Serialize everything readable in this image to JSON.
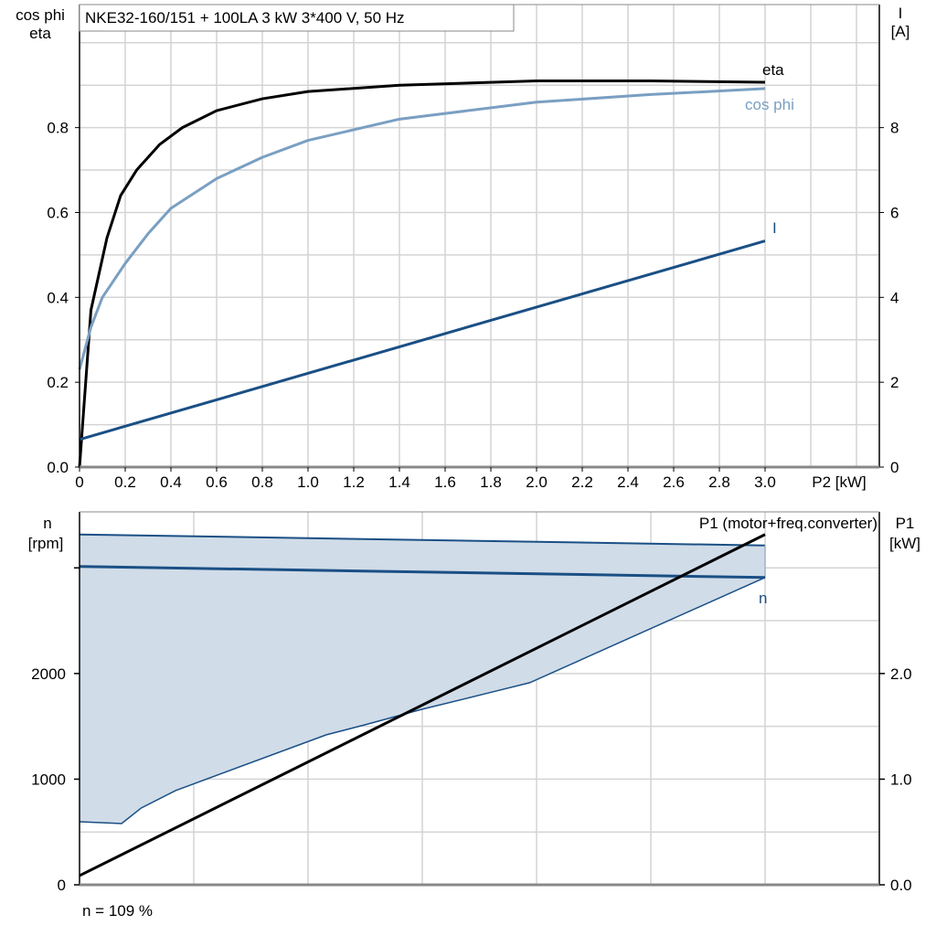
{
  "chart_data": [
    {
      "type": "line",
      "title": "NKE32-160/151 + 100LA   3 kW   3*400 V, 50 Hz",
      "xlabel": "P2 [kW]",
      "ylabel_left": [
        "cos phi",
        "eta"
      ],
      "ylabel_right": [
        "I",
        "[A]"
      ],
      "xlim": [
        0,
        3.5
      ],
      "ylim_left": [
        0,
        1.09
      ],
      "ylim_right": [
        0,
        10.9
      ],
      "x_ticks": [
        "0",
        "0.2",
        "0.4",
        "0.6",
        "0.8",
        "1.0",
        "1.2",
        "1.4",
        "1.6",
        "1.8",
        "2.0",
        "2.2",
        "2.4",
        "2.6",
        "2.8",
        "3.0"
      ],
      "y_ticks_left": [
        "0.0",
        "0.2",
        "0.4",
        "0.6",
        "0.8"
      ],
      "y_ticks_right": [
        "0",
        "2",
        "4",
        "6",
        "8"
      ],
      "grid": true,
      "series": [
        {
          "name": "eta",
          "axis": "left",
          "color": "#000000",
          "x": [
            0,
            0.05,
            0.12,
            0.18,
            0.25,
            0.35,
            0.45,
            0.6,
            0.8,
            1.0,
            1.4,
            2.0,
            2.5,
            3.0
          ],
          "y": [
            0,
            0.37,
            0.54,
            0.64,
            0.7,
            0.76,
            0.8,
            0.84,
            0.868,
            0.885,
            0.9,
            0.91,
            0.91,
            0.907
          ]
        },
        {
          "name": "cos phi",
          "axis": "left",
          "color": "#7a9fc2",
          "x": [
            0,
            0.05,
            0.1,
            0.2,
            0.3,
            0.4,
            0.6,
            0.8,
            1.0,
            1.4,
            2.0,
            2.5,
            3.0
          ],
          "y": [
            0.23,
            0.33,
            0.4,
            0.48,
            0.55,
            0.61,
            0.68,
            0.73,
            0.77,
            0.82,
            0.86,
            0.878,
            0.892
          ]
        },
        {
          "name": "I",
          "axis": "right",
          "color": "#1a4f85",
          "x": [
            0,
            3.0
          ],
          "y": [
            0.65,
            5.33
          ]
        }
      ]
    },
    {
      "type": "area",
      "xlim": [
        0,
        3.5
      ],
      "ylabel_left": [
        "n",
        "[rpm]"
      ],
      "ylabel_right": [
        "P1",
        "[kW]"
      ],
      "ylim_left": [
        0,
        3530
      ],
      "ylim_right": [
        0,
        3.53
      ],
      "y_ticks_left": [
        "0",
        "1000",
        "2000"
      ],
      "y_ticks_right": [
        "0.0",
        "1.0",
        "2.0"
      ],
      "grid": true,
      "footnote": "n = 109 %",
      "area_upper": {
        "x": [
          0,
          3.0
        ],
        "y": [
          3316,
          3212
        ]
      },
      "area_lower": {
        "x": [
          0,
          0.184,
          0.27,
          0.42,
          1.08,
          1.25,
          1.5,
          1.81,
          1.97,
          3.0
        ],
        "y": [
          597,
          580,
          727,
          892,
          1420,
          1515,
          1662,
          1827,
          1913,
          2909
        ]
      },
      "area_color": "#d0dce8",
      "series": [
        {
          "name": "n",
          "axis": "left",
          "color": "#1a4f85",
          "x": [
            0,
            3.0
          ],
          "y": [
            3013,
            2909
          ]
        },
        {
          "name": "P1 (motor+freq.converter)",
          "axis": "right",
          "color": "#000000",
          "x": [
            0,
            3.0
          ],
          "y": [
            0.087,
            3.316
          ]
        }
      ]
    }
  ]
}
